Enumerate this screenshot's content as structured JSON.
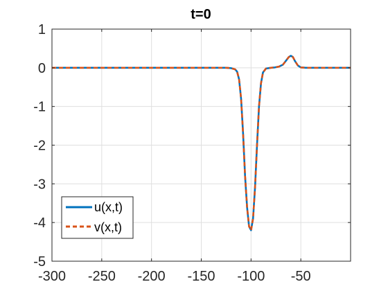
{
  "chart_data": {
    "type": "line",
    "title": "t=0",
    "xlabel": "",
    "ylabel": "",
    "xlim": [
      -300,
      0
    ],
    "ylim": [
      -5,
      1
    ],
    "xticks": [
      -300,
      -250,
      -200,
      -150,
      -100,
      -50
    ],
    "xtick_labels": [
      "-300",
      "-250",
      "-200",
      "-150",
      "-100",
      "-50"
    ],
    "yticks": [
      1,
      0,
      -1,
      -2,
      -3,
      -4,
      -5
    ],
    "ytick_labels": [
      "1",
      "0",
      "-1",
      "-2",
      "-3",
      "-4",
      "-5"
    ],
    "grid": true,
    "legend_position": "bottom-left",
    "x": [
      -300,
      -125,
      -120,
      -116,
      -114,
      -112,
      -110,
      -108,
      -106,
      -104,
      -102,
      -100,
      -98,
      -96,
      -94,
      -92,
      -90,
      -88,
      -85,
      -80,
      -76,
      -72,
      -68,
      -65,
      -62,
      -60,
      -58,
      -56,
      -53,
      -50,
      -45,
      -40,
      0
    ],
    "series": [
      {
        "name": "u(x,t)",
        "color": "#0072BD",
        "style": "solid",
        "values": [
          0,
          0,
          -0.01,
          -0.04,
          -0.1,
          -0.3,
          -0.8,
          -1.7,
          -2.8,
          -3.6,
          -4.1,
          -4.2,
          -3.9,
          -3.1,
          -2.0,
          -1.0,
          -0.4,
          -0.12,
          -0.02,
          0,
          0.01,
          0.03,
          0.08,
          0.18,
          0.28,
          0.31,
          0.28,
          0.18,
          0.06,
          0.01,
          0,
          0,
          0
        ]
      },
      {
        "name": "v(x,t)",
        "color": "#D95319",
        "style": "dashed",
        "values": [
          0,
          0,
          -0.01,
          -0.04,
          -0.1,
          -0.3,
          -0.8,
          -1.7,
          -2.8,
          -3.6,
          -4.1,
          -4.2,
          -3.9,
          -3.1,
          -2.0,
          -1.0,
          -0.4,
          -0.12,
          -0.02,
          0,
          0.01,
          0.03,
          0.08,
          0.18,
          0.28,
          0.31,
          0.28,
          0.18,
          0.06,
          0.01,
          0,
          0,
          0
        ]
      }
    ]
  }
}
